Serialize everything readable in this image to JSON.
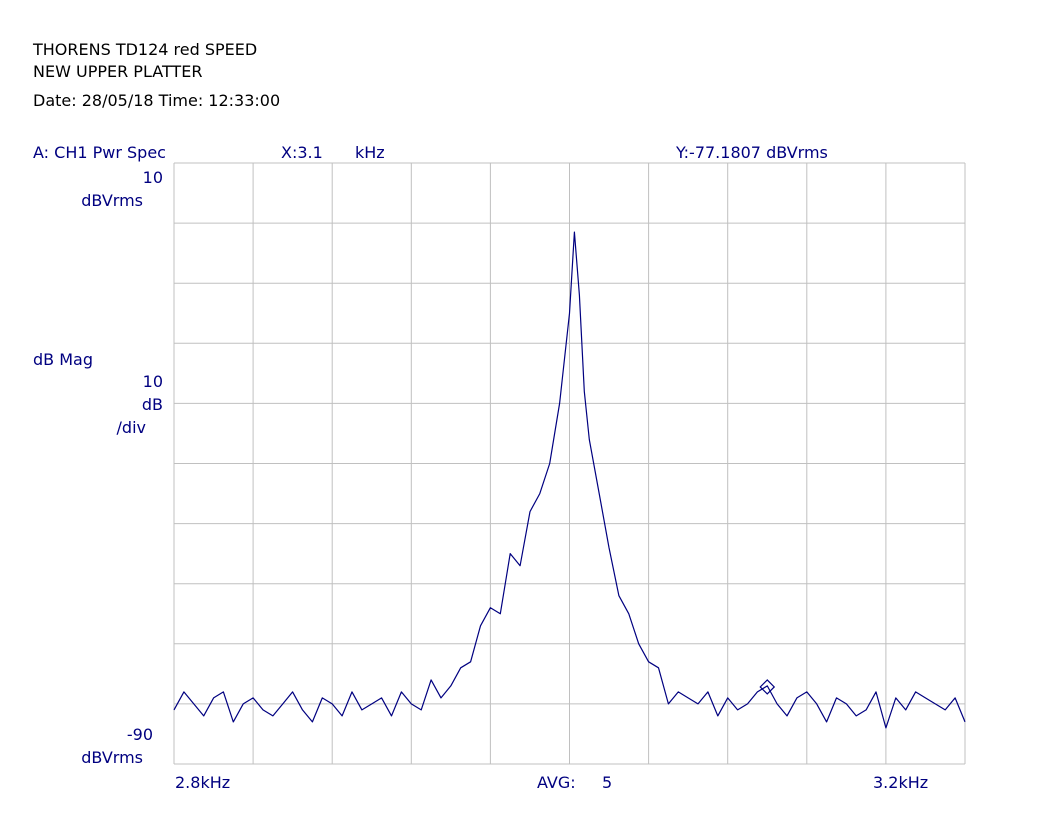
{
  "header": {
    "line1": "THORENS TD124 red SPEED",
    "line2": "NEW UPPER PLATTER",
    "line3": "Date: 28/05/18  Time: 12:33:00"
  },
  "trace_bar": {
    "trace_label": "A:  CH1 Pwr Spec",
    "x_readout": "X:3.1",
    "x_unit": "kHz",
    "y_readout": "Y:-77.1807 dBVrms"
  },
  "yaxis": {
    "top_value": "10",
    "top_unit": "dBVrms",
    "mode_label": "dB Mag",
    "scale_value": "10",
    "scale_unit": "dB",
    "scale_per": "/div",
    "bottom_value": "-90",
    "bottom_unit": "dBVrms"
  },
  "footer": {
    "x_start": "2.8kHz",
    "avg_label": "AVG:",
    "avg_value": "5",
    "x_stop": "3.2kHz"
  },
  "chart_data": {
    "type": "line",
    "title": "THORENS TD124 red SPEED",
    "xlabel": "kHz",
    "ylabel": "dBVrms",
    "xlim": [
      2.8,
      3.2
    ],
    "ylim": [
      -90,
      10
    ],
    "grid": true,
    "line_color": "#000080",
    "grid_color": "#c0c0c0",
    "marker": {
      "x": 3.1,
      "y": -77.1807
    },
    "series": [
      {
        "x": [
          2.8,
          2.805,
          2.81,
          2.815,
          2.82,
          2.825,
          2.83,
          2.835,
          2.84,
          2.845,
          2.85,
          2.855,
          2.86,
          2.865,
          2.87,
          2.875,
          2.88,
          2.885,
          2.89,
          2.895,
          2.9,
          2.905,
          2.91,
          2.915,
          2.92,
          2.925,
          2.93,
          2.935,
          2.94,
          2.945,
          2.95,
          2.955,
          2.96,
          2.965,
          2.97,
          2.975,
          2.98,
          2.985,
          2.99,
          2.995,
          3.0,
          3.0025,
          3.005,
          3.0075,
          3.01,
          3.015,
          3.02,
          3.025,
          3.03,
          3.035,
          3.04,
          3.045,
          3.05,
          3.055,
          3.06,
          3.065,
          3.07,
          3.075,
          3.08,
          3.085,
          3.09,
          3.095,
          3.1,
          3.105,
          3.11,
          3.115,
          3.12,
          3.125,
          3.13,
          3.135,
          3.14,
          3.145,
          3.15,
          3.155,
          3.16,
          3.165,
          3.17,
          3.175,
          3.18,
          3.185,
          3.19,
          3.195,
          3.2
        ],
        "y": [
          -81,
          -78,
          -80,
          -82,
          -79,
          -78,
          -83,
          -80,
          -79,
          -81,
          -82,
          -80,
          -78,
          -81,
          -83,
          -79,
          -80,
          -82,
          -78,
          -81,
          -80,
          -79,
          -82,
          -78,
          -80,
          -81,
          -76,
          -79,
          -77,
          -74,
          -73,
          -67,
          -64,
          -65,
          -55,
          -57,
          -48,
          -45,
          -40,
          -30,
          -15,
          -1.5,
          -12,
          -28,
          -36,
          -45,
          -54,
          -62,
          -65,
          -70,
          -73,
          -74,
          -80,
          -78,
          -79,
          -80,
          -78,
          -82,
          -79,
          -81,
          -80,
          -78,
          -77,
          -80,
          -82,
          -79,
          -78,
          -80,
          -83,
          -79,
          -80,
          -82,
          -81,
          -78,
          -84,
          -79,
          -81,
          -78,
          -79,
          -80,
          -81,
          -79,
          -83
        ]
      }
    ]
  }
}
